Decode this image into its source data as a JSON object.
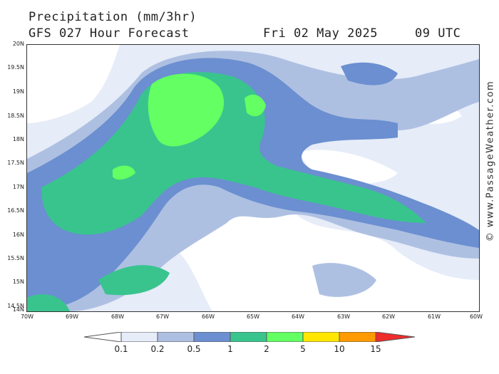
{
  "title": {
    "line1": "Precipitation (mm/3hr)",
    "line2": "GFS 027 Hour Forecast",
    "date": "Fri 02 May 2025",
    "time": "09 UTC"
  },
  "credit": "© www.PassageWeather.com",
  "map": {
    "lat_labels": [
      "20N",
      "19.5N",
      "19N",
      "18.5N",
      "18N",
      "17.5N",
      "17N",
      "16.5N",
      "16N",
      "15.5N",
      "15N",
      "14.5N",
      "14N"
    ],
    "lon_labels": [
      "70W",
      "69W",
      "68W",
      "67W",
      "66W",
      "65W",
      "64W",
      "63W",
      "62W",
      "61W",
      "60W"
    ],
    "lat_range": [
      14,
      20
    ],
    "lon_range": [
      -70,
      -60
    ]
  },
  "legend": {
    "labels": [
      "0.1",
      "0.2",
      "0.5",
      "1",
      "2",
      "5",
      "10",
      "15"
    ],
    "colors": [
      "#ffffff",
      "#e6ecf8",
      "#aec0e2",
      "#6b8fd0",
      "#39c48e",
      "#63ff63",
      "#ffe600",
      "#ff9a00",
      "#ef2b2b"
    ]
  }
}
